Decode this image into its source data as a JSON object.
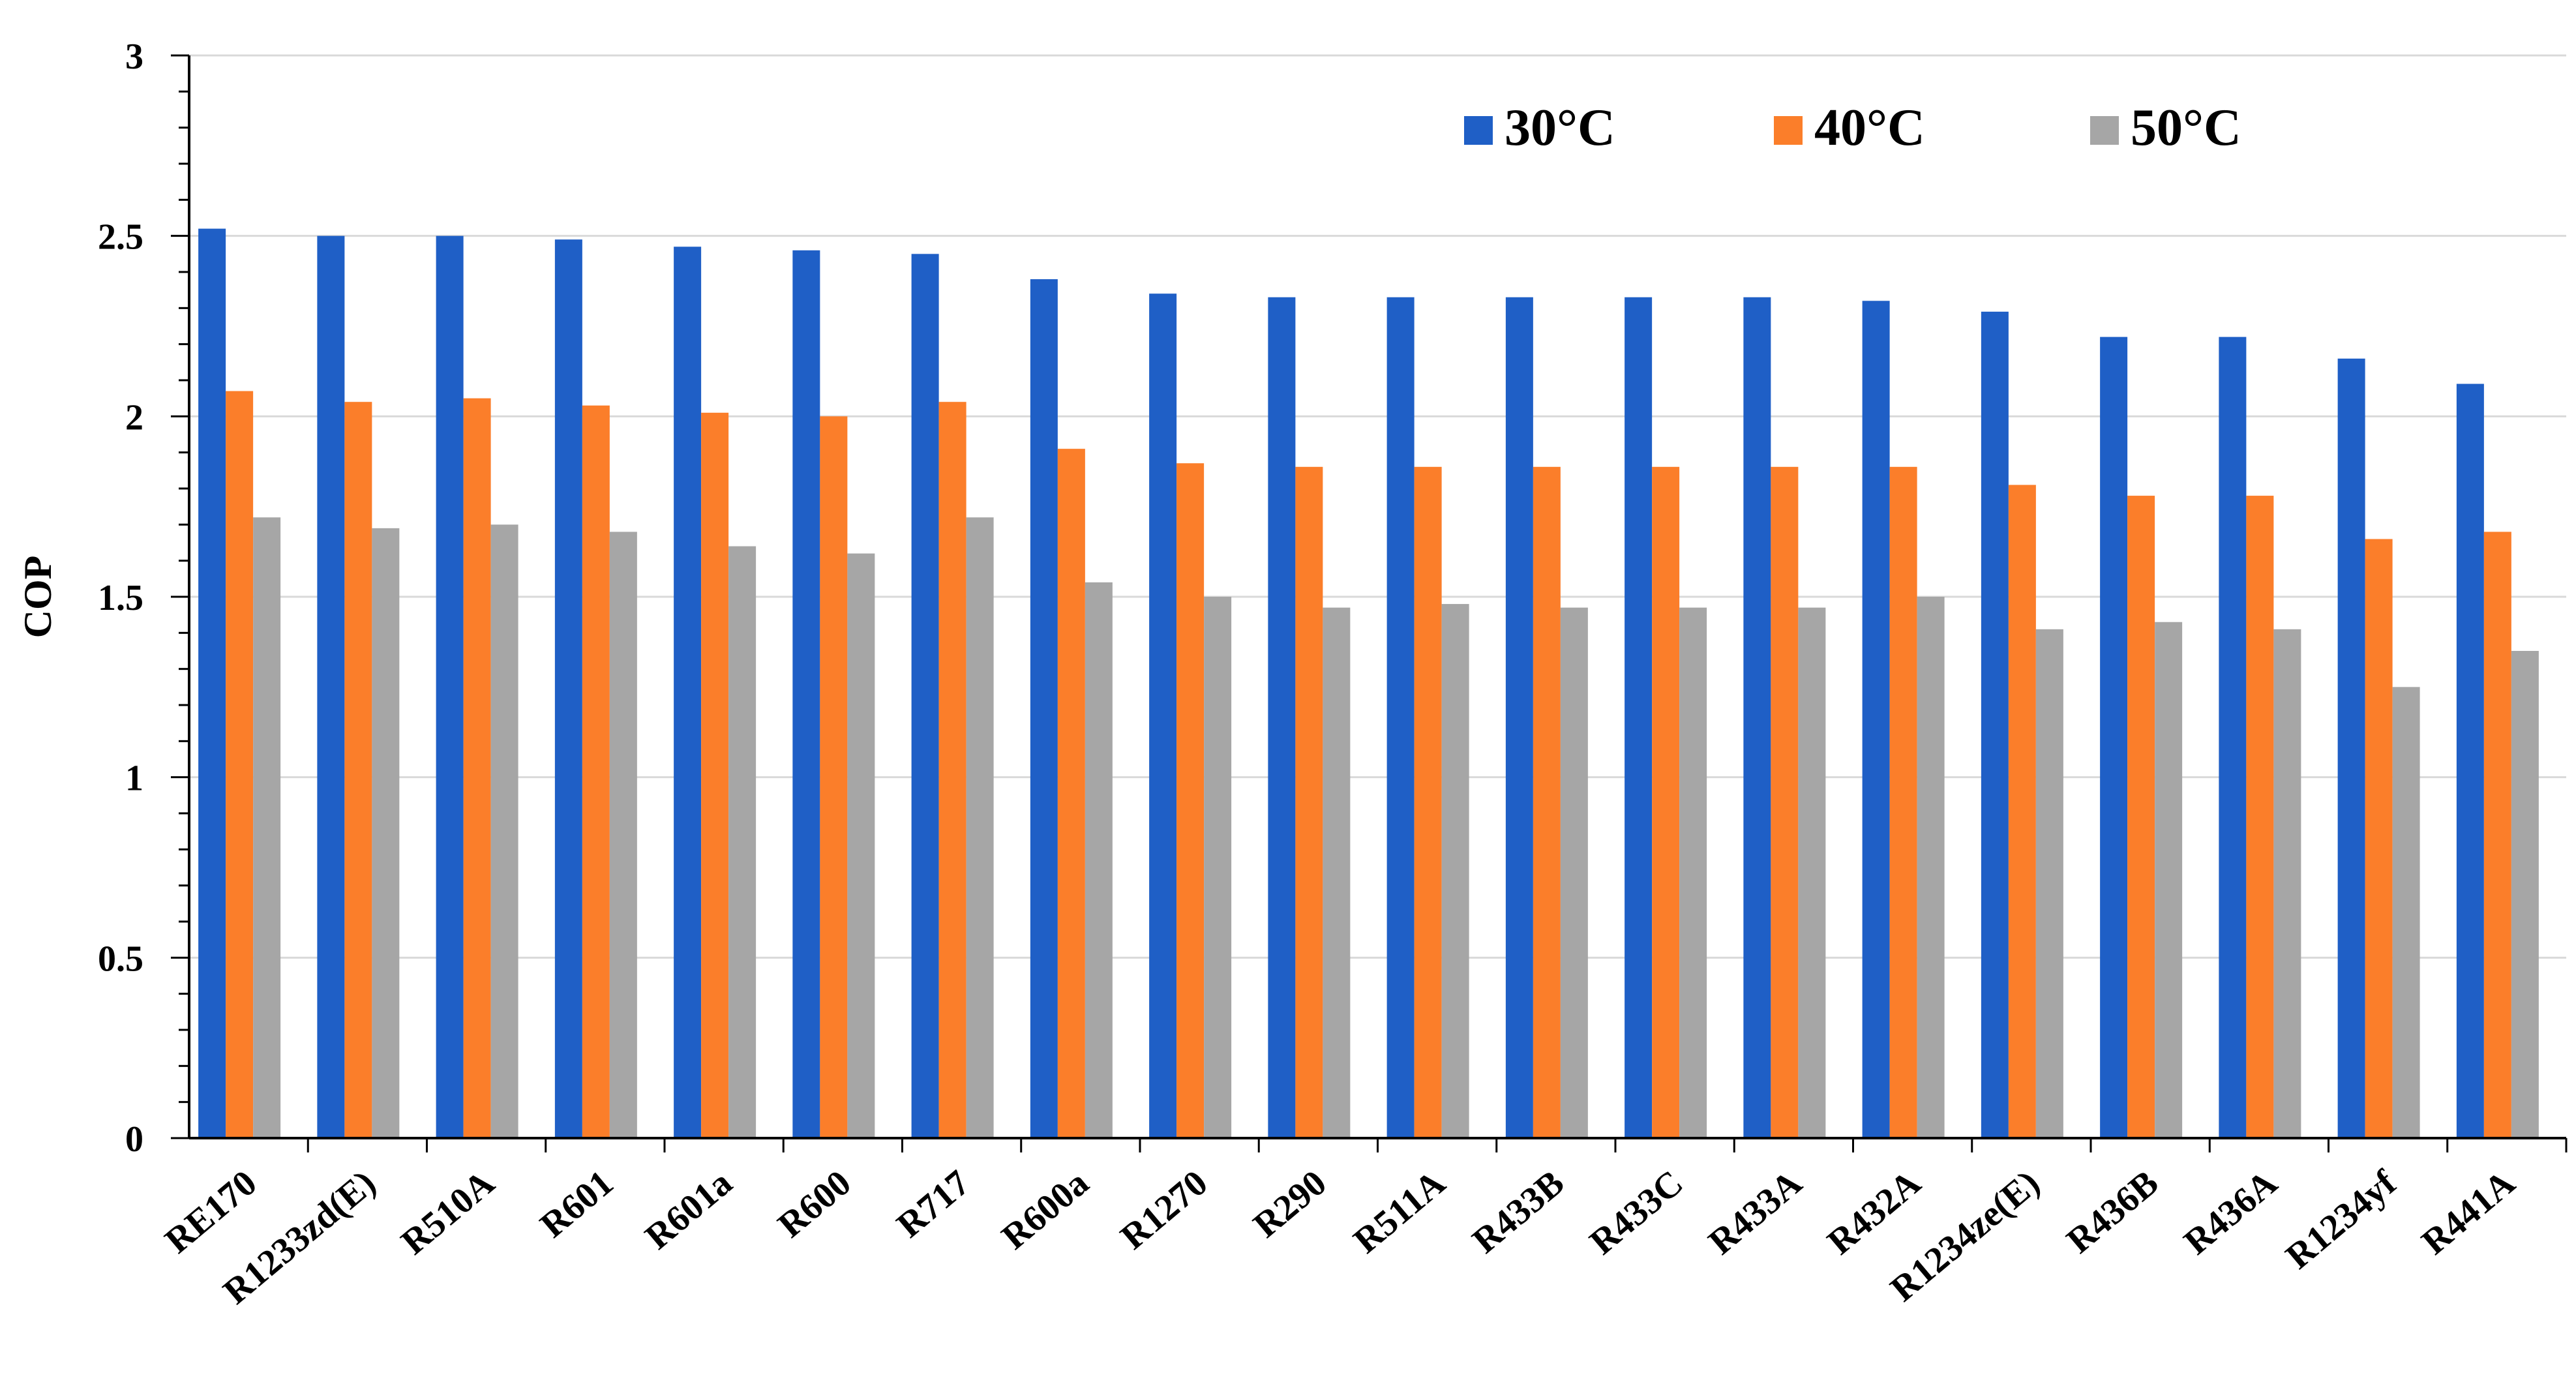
{
  "chart_data": {
    "type": "bar",
    "title": "",
    "xlabel": "",
    "ylabel": "COP",
    "ylim": [
      0,
      3
    ],
    "yticks": [
      {
        "value": 0,
        "label": "0"
      },
      {
        "value": 0.5,
        "label": "0.5"
      },
      {
        "value": 1,
        "label": "1"
      },
      {
        "value": 1.5,
        "label": "1.5"
      },
      {
        "value": 2,
        "label": "2"
      },
      {
        "value": 2.5,
        "label": "2.5"
      },
      {
        "value": 3,
        "label": "3"
      }
    ],
    "grid": true,
    "legend_position": "top-right",
    "categories": [
      "RE170",
      "R1233zd(E)",
      "R510A",
      "R601",
      "R601a",
      "R600",
      "R717",
      "R600a",
      "R1270",
      "R290",
      "R511A",
      "R433B",
      "R433C",
      "R433A",
      "R432A",
      "R1234ze(E)",
      "R436B",
      "R436A",
      "R1234yf",
      "R441A"
    ],
    "series": [
      {
        "name": "30°C",
        "color": "#1f5fc6",
        "values": [
          2.52,
          2.5,
          2.5,
          2.49,
          2.47,
          2.46,
          2.45,
          2.38,
          2.34,
          2.33,
          2.33,
          2.33,
          2.33,
          2.33,
          2.32,
          2.29,
          2.22,
          2.22,
          2.16,
          2.09
        ]
      },
      {
        "name": "40°C",
        "color": "#fb7e2a",
        "values": [
          2.07,
          2.04,
          2.05,
          2.03,
          2.01,
          2.0,
          2.04,
          1.91,
          1.87,
          1.86,
          1.86,
          1.86,
          1.86,
          1.86,
          1.86,
          1.81,
          1.78,
          1.78,
          1.66,
          1.68
        ]
      },
      {
        "name": "50°C",
        "color": "#a6a6a6",
        "values": [
          1.72,
          1.69,
          1.7,
          1.68,
          1.64,
          1.62,
          1.72,
          1.54,
          1.5,
          1.47,
          1.48,
          1.47,
          1.47,
          1.47,
          1.5,
          1.41,
          1.43,
          1.41,
          1.25,
          1.35
        ]
      }
    ]
  }
}
